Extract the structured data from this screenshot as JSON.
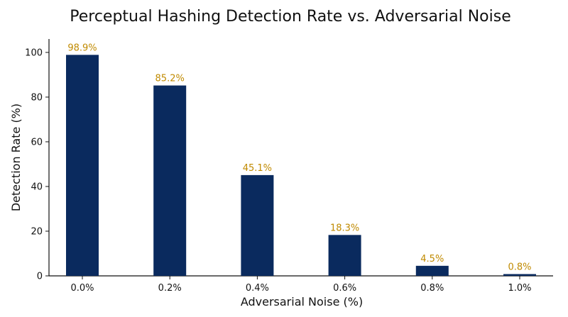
{
  "chart_data": {
    "type": "bar",
    "title": "Perceptual Hashing Detection Rate vs. Adversarial Noise",
    "xlabel": "Adversarial Noise (%)",
    "ylabel": "Detection Rate (%)",
    "categories": [
      "0.0%",
      "0.2%",
      "0.4%",
      "0.6%",
      "0.8%",
      "1.0%"
    ],
    "values": [
      98.9,
      85.2,
      45.1,
      18.3,
      4.5,
      0.8
    ],
    "data_labels": [
      "98.9%",
      "85.2%",
      "45.1%",
      "18.3%",
      "4.5%",
      "0.8%"
    ],
    "ylim": [
      0,
      106
    ],
    "yticks": [
      0,
      20,
      40,
      60,
      80,
      100
    ],
    "grid": false,
    "colors": {
      "bar": "#0a2a5e",
      "label": "#c08a00"
    }
  }
}
